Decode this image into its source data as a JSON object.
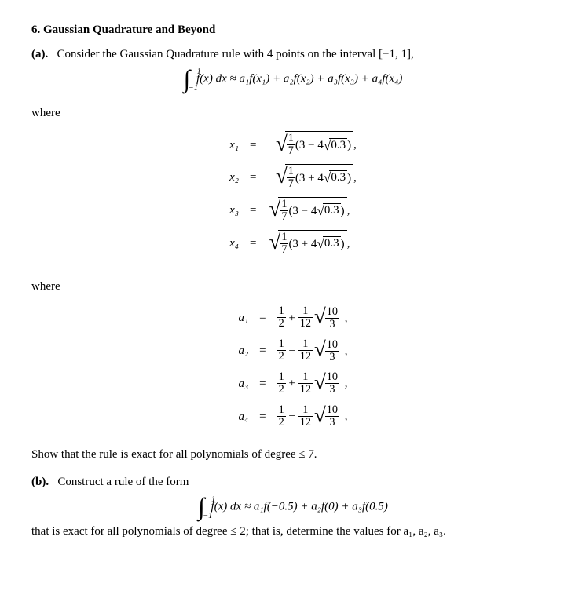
{
  "title": "6. Gaussian Quadrature and Beyond",
  "partA": {
    "label": "(a).",
    "intro": "Consider the Gaussian Quadrature rule with 4 points on the interval [−1, 1],",
    "quadrature_lhs_sym": "f(x) dx",
    "approx": "≈",
    "terms": [
      "a₁f(x₁)",
      "a₂f(x₂)",
      "a₃f(x₃)",
      "a₄f(x₄)"
    ],
    "where": "where",
    "x_rows": [
      {
        "lhs": "x₁",
        "sign": "−",
        "inner_sign": "−"
      },
      {
        "lhs": "x₂",
        "sign": "−",
        "inner_sign": "+"
      },
      {
        "lhs": "x₃",
        "sign": "",
        "inner_sign": "−"
      },
      {
        "lhs": "x₄",
        "sign": "",
        "inner_sign": "+"
      }
    ],
    "frac17_num": "1",
    "frac17_den": "7",
    "inner_const": "3",
    "inner_coef": "4",
    "inner_rad": "0.3",
    "a_rows": [
      {
        "lhs": "a₁",
        "sign": "+"
      },
      {
        "lhs": "a₂",
        "sign": "−"
      },
      {
        "lhs": "a₃",
        "sign": "+"
      },
      {
        "lhs": "a₄",
        "sign": "−"
      }
    ],
    "half_num": "1",
    "half_den": "2",
    "twelfth_num": "1",
    "twelfth_den": "12",
    "tenthird_num": "10",
    "tenthird_den": "3",
    "show": "Show that the rule is exact for all polynomials of degree ≤ 7."
  },
  "partB": {
    "label": "(b).",
    "intro": "Construct a rule of the form",
    "terms": [
      "a₁f(−0.5)",
      "a₂f(0)",
      "a₃f(0.5)"
    ],
    "last": "that is exact for all polynomials of degree ≤ 2; that is, determine the values for a₁, a₂, a₃."
  },
  "styling": {
    "font_family": "Times New Roman",
    "font_size_pt": 11,
    "text_color": "#000000",
    "background_color": "#ffffff"
  }
}
